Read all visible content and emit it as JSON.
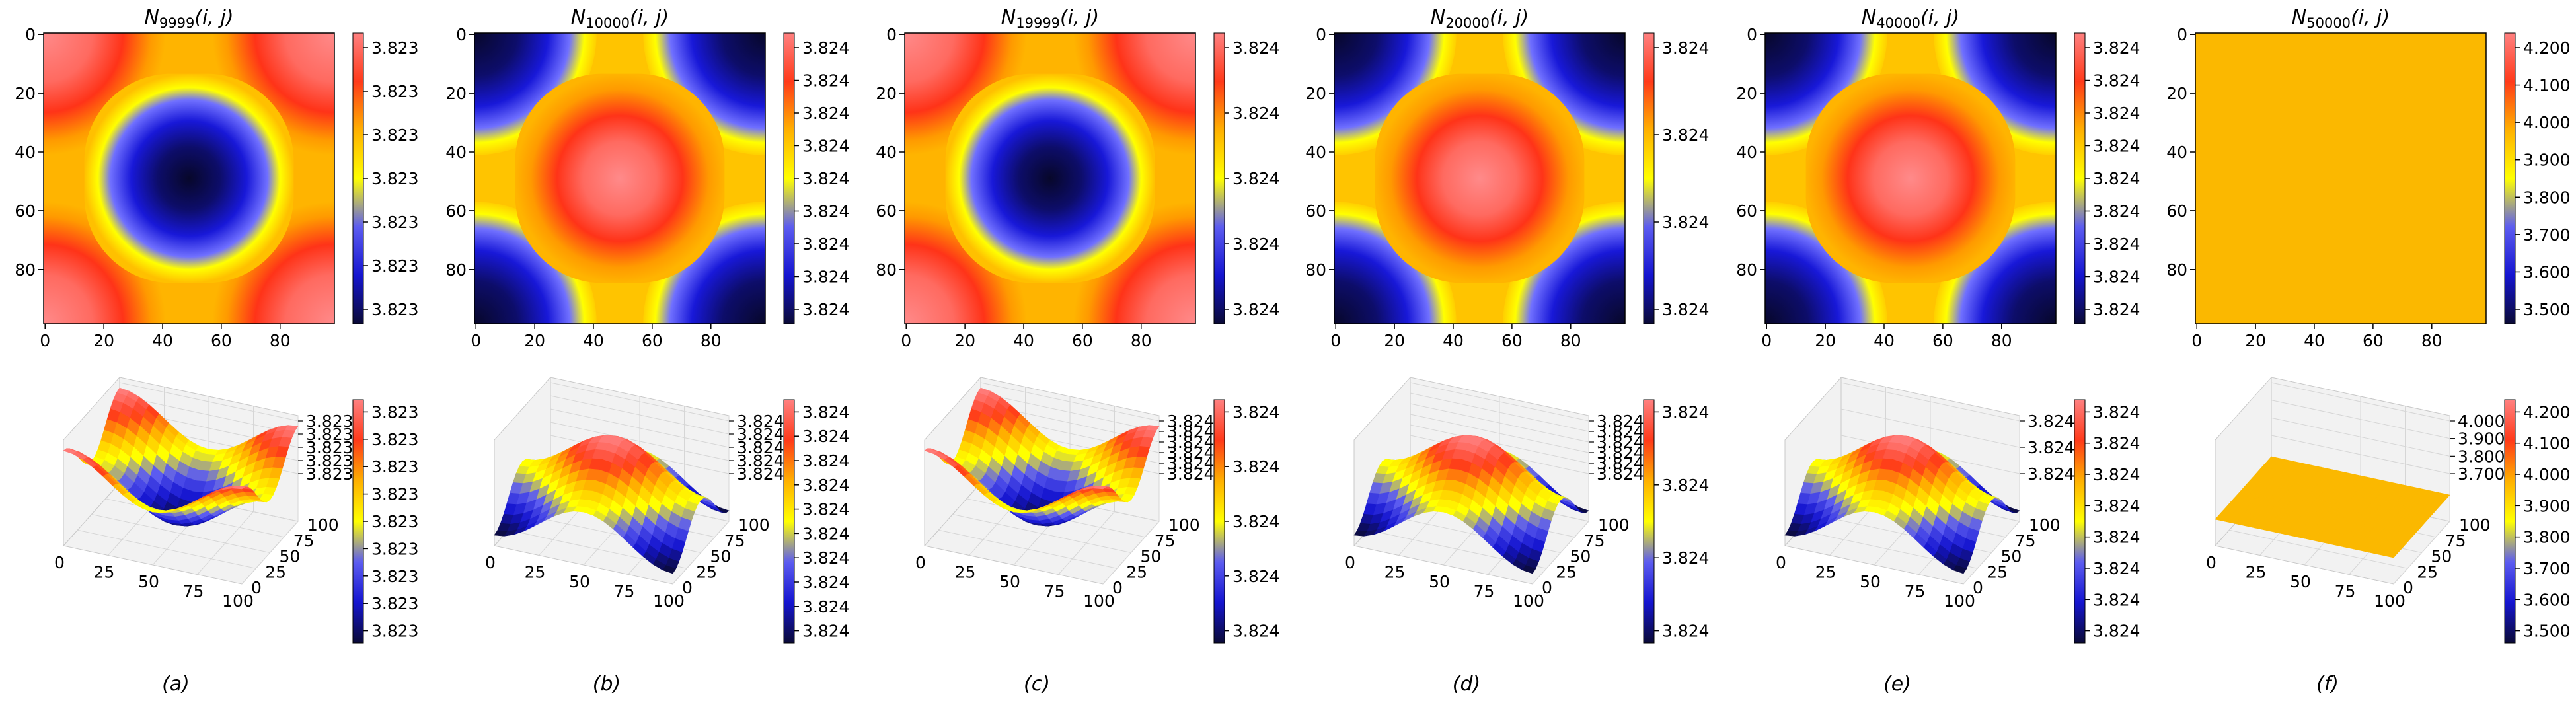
{
  "figure": {
    "colormap": [
      "#0a0a36",
      "#1515d0",
      "#5c5cf0",
      "#ffff00",
      "#ffb000",
      "#ff3a1a",
      "#ff8080"
    ],
    "flat_color": "#fbb800"
  },
  "chart_data": [
    {
      "type": "heatmap",
      "panel": "a",
      "title_main": "N",
      "title_sub": "9999",
      "title_args": "(i, j)",
      "pattern": "inverted",
      "xticks": [
        "0",
        "20",
        "40",
        "60",
        "80"
      ],
      "yticks": [
        "0",
        "20",
        "40",
        "60",
        "80"
      ],
      "colorbar_ticks": [
        "3.823",
        "3.823",
        "3.823",
        "3.823",
        "3.823",
        "3.823",
        "3.823"
      ],
      "surface": {
        "x_ticks": [
          "0",
          "25",
          "50",
          "75",
          "100"
        ],
        "y_ticks": [
          "0",
          "25",
          "50",
          "75",
          "100"
        ],
        "z_ticks": [
          "3.823",
          "3.823",
          "3.823",
          "3.823",
          "3.823"
        ],
        "colorbar_ticks": [
          "3.823",
          "3.823",
          "3.823",
          "3.823",
          "3.823",
          "3.823",
          "3.823",
          "3.823",
          "3.823"
        ]
      },
      "caption": "(a)"
    },
    {
      "type": "heatmap",
      "panel": "b",
      "title_main": "N",
      "title_sub": "10000",
      "title_args": "(i, j)",
      "pattern": "normal",
      "xticks": [
        "0",
        "20",
        "40",
        "60",
        "80"
      ],
      "yticks": [
        "0",
        "20",
        "40",
        "60",
        "80"
      ],
      "colorbar_ticks": [
        "3.824",
        "3.824",
        "3.824",
        "3.824",
        "3.824",
        "3.824",
        "3.824",
        "3.824",
        "3.824"
      ],
      "surface": {
        "x_ticks": [
          "0",
          "25",
          "50",
          "75",
          "100"
        ],
        "y_ticks": [
          "0",
          "25",
          "50",
          "75",
          "100"
        ],
        "z_ticks": [
          "3.824",
          "3.824",
          "3.824",
          "3.824",
          "3.824"
        ],
        "colorbar_ticks": [
          "3.824",
          "3.824",
          "3.824",
          "3.824",
          "3.824",
          "3.824",
          "3.824",
          "3.824",
          "3.824",
          "3.824"
        ]
      },
      "caption": "(b)"
    },
    {
      "type": "heatmap",
      "panel": "c",
      "title_main": "N",
      "title_sub": "19999",
      "title_args": "(i, j)",
      "pattern": "inverted",
      "xticks": [
        "0",
        "20",
        "40",
        "60",
        "80"
      ],
      "yticks": [
        "0",
        "20",
        "40",
        "60",
        "80"
      ],
      "colorbar_ticks": [
        "3.824",
        "3.824",
        "3.824",
        "3.824",
        "3.824"
      ],
      "surface": {
        "x_ticks": [
          "0",
          "25",
          "50",
          "75",
          "100"
        ],
        "y_ticks": [
          "0",
          "25",
          "50",
          "75",
          "100"
        ],
        "z_ticks": [
          "3.824",
          "3.824",
          "3.824",
          "3.824",
          "3.824",
          "3.824"
        ],
        "colorbar_ticks": [
          "3.824",
          "3.824",
          "3.824",
          "3.824",
          "3.824"
        ]
      },
      "caption": "(c)"
    },
    {
      "type": "heatmap",
      "panel": "d",
      "title_main": "N",
      "title_sub": "20000",
      "title_args": "(i, j)",
      "pattern": "normal",
      "xticks": [
        "0",
        "20",
        "40",
        "60",
        "80"
      ],
      "yticks": [
        "0",
        "20",
        "40",
        "60",
        "80"
      ],
      "colorbar_ticks": [
        "3.824",
        "3.824",
        "3.824",
        "3.824"
      ],
      "surface": {
        "x_ticks": [
          "0",
          "25",
          "50",
          "75",
          "100"
        ],
        "y_ticks": [
          "0",
          "25",
          "50",
          "75",
          "100"
        ],
        "z_ticks": [
          "3.824",
          "3.824",
          "3.824",
          "3.824",
          "3.824",
          "3.824"
        ],
        "colorbar_ticks": [
          "3.824",
          "3.824",
          "3.824",
          "3.824"
        ]
      },
      "caption": "(d)"
    },
    {
      "type": "heatmap",
      "panel": "e",
      "title_main": "N",
      "title_sub": "40000",
      "title_args": "(i, j)",
      "pattern": "normal",
      "xticks": [
        "0",
        "20",
        "40",
        "60",
        "80"
      ],
      "yticks": [
        "0",
        "20",
        "40",
        "60",
        "80"
      ],
      "colorbar_ticks": [
        "3.824",
        "3.824",
        "3.824",
        "3.824",
        "3.824",
        "3.824",
        "3.824",
        "3.824",
        "3.824"
      ],
      "surface": {
        "x_ticks": [
          "0",
          "25",
          "50",
          "75",
          "100"
        ],
        "y_ticks": [
          "0",
          "25",
          "50",
          "75",
          "100"
        ],
        "z_ticks": [
          "3.824",
          "3.824",
          "3.824"
        ],
        "colorbar_ticks": [
          "3.824",
          "3.824",
          "3.824",
          "3.824",
          "3.824",
          "3.824",
          "3.824",
          "3.824"
        ]
      },
      "caption": "(e)"
    },
    {
      "type": "heatmap",
      "panel": "f",
      "title_main": "N",
      "title_sub": "50000",
      "title_args": "(i, j)",
      "pattern": "flat",
      "xticks": [
        "0",
        "20",
        "40",
        "60",
        "80"
      ],
      "yticks": [
        "0",
        "20",
        "40",
        "60",
        "80"
      ],
      "colorbar_ticks": [
        "4.200",
        "4.100",
        "4.000",
        "3.900",
        "3.800",
        "3.700",
        "3.600",
        "3.500"
      ],
      "surface": {
        "x_ticks": [
          "0",
          "25",
          "50",
          "75",
          "100"
        ],
        "y_ticks": [
          "0",
          "25",
          "50",
          "75",
          "100"
        ],
        "z_ticks": [
          "4.000",
          "3.900",
          "3.800",
          "3.700"
        ],
        "colorbar_ticks": [
          "4.200",
          "4.100",
          "4.000",
          "3.900",
          "3.800",
          "3.700",
          "3.600",
          "3.500"
        ]
      },
      "caption": "(f)"
    }
  ]
}
